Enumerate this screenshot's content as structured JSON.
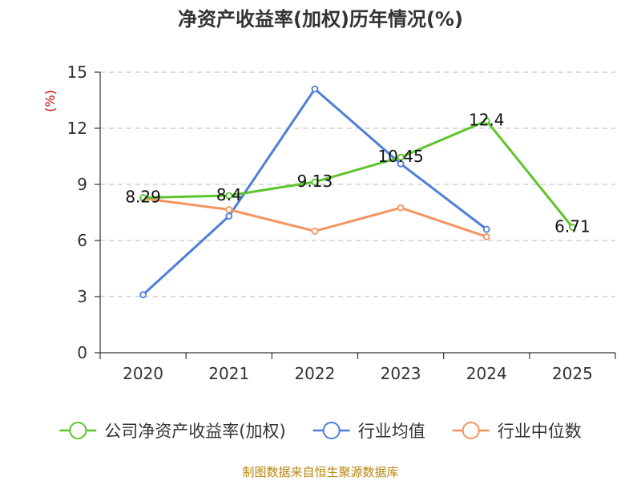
{
  "chart_data": {
    "type": "line",
    "title": "净资产收益率(加权)历年情况(%)",
    "ylabel": "(%)",
    "xlabel": "",
    "ylim": [
      0,
      15
    ],
    "yticks": [
      0,
      3,
      6,
      9,
      12,
      15
    ],
    "grid": true,
    "legend_position": "bottom",
    "categories": [
      "2020",
      "2021",
      "2022",
      "2023",
      "2024",
      "2025"
    ],
    "series": [
      {
        "name": "公司净资产收益率(加权)",
        "color": "#5dc52b",
        "values": [
          8.29,
          8.4,
          9.13,
          10.45,
          12.4,
          6.71
        ],
        "labels": [
          "8.29",
          "8.4",
          "9.13",
          "10.45",
          "12.4",
          "6.71"
        ],
        "show_labels": true
      },
      {
        "name": "行业均值",
        "color": "#4e7fd9",
        "values": [
          3.1,
          7.3,
          14.1,
          10.1,
          6.6,
          null
        ],
        "show_labels": false
      },
      {
        "name": "行业中位数",
        "color": "#f59461",
        "values": [
          8.25,
          7.65,
          6.5,
          7.75,
          6.2,
          null
        ],
        "show_labels": false
      }
    ],
    "source": "制图数据来自恒生聚源数据库"
  }
}
